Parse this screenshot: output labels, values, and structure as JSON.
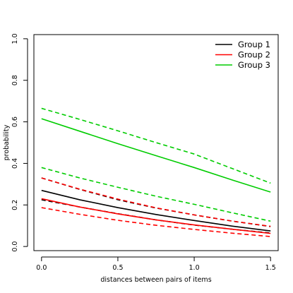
{
  "chart_data": {
    "type": "line",
    "xlabel": "distances between pairs of items",
    "ylabel": "probability",
    "xlim": [
      -0.05,
      1.55
    ],
    "ylim": [
      -0.02,
      1.02
    ],
    "x_ticks": [
      "0.0",
      "0.5",
      "1.0",
      "1.5"
    ],
    "y_ticks": [
      "0.0",
      "0.2",
      "0.4",
      "0.6",
      "0.8",
      "1.0"
    ],
    "grid": false,
    "legend_position": "top-right",
    "x": [
      0.0,
      0.25,
      0.5,
      0.75,
      1.0,
      1.25,
      1.5
    ],
    "series": [
      {
        "name": "Group 1",
        "color": "#000000",
        "estimate": [
          0.27,
          0.225,
          0.187,
          0.154,
          0.125,
          0.098,
          0.075
        ],
        "lower": [
          0.225,
          0.19,
          0.158,
          0.128,
          0.103,
          0.083,
          0.065
        ],
        "upper": [
          0.33,
          0.275,
          0.225,
          0.185,
          0.152,
          0.122,
          0.096
        ]
      },
      {
        "name": "Group 2",
        "color": "#ff0000",
        "estimate": [
          0.23,
          0.19,
          0.157,
          0.128,
          0.104,
          0.083,
          0.063
        ],
        "lower": [
          0.187,
          0.155,
          0.126,
          0.102,
          0.082,
          0.064,
          0.048
        ],
        "upper": [
          0.33,
          0.276,
          0.228,
          0.186,
          0.152,
          0.122,
          0.097
        ]
      },
      {
        "name": "Group 3",
        "color": "#00cc00",
        "estimate": [
          0.615,
          0.555,
          0.495,
          0.437,
          0.38,
          0.32,
          0.262
        ],
        "lower": [
          0.38,
          0.33,
          0.285,
          0.242,
          0.203,
          0.162,
          0.122
        ],
        "upper": [
          0.665,
          0.612,
          0.557,
          0.5,
          0.445,
          0.375,
          0.305
        ]
      }
    ]
  }
}
